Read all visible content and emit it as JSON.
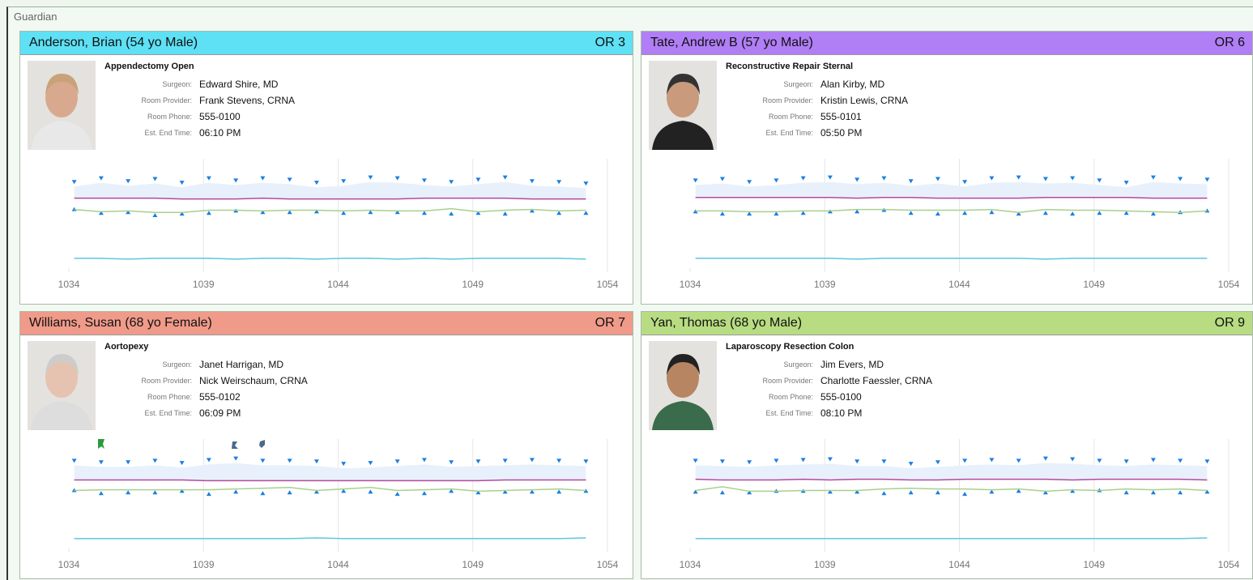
{
  "app_title": "Guardian",
  "patients": [
    {
      "name": "Anderson, Brian (54 yo Male)",
      "room": "OR 3",
      "header_color": "#5ee0f5",
      "procedure": "Appendectomy Open",
      "fields": [
        {
          "label": "Surgeon:",
          "value": "Edward Shire, MD"
        },
        {
          "label": "Room Provider:",
          "value": "Frank Stevens, CRNA"
        },
        {
          "label": "Room Phone:",
          "value": "555-0100"
        },
        {
          "label": "Est. End Time:",
          "value": "06:10 PM"
        }
      ]
    },
    {
      "name": "Tate, Andrew B (57 yo Male)",
      "room": "OR 6",
      "header_color": "#b07ef5",
      "procedure": "Reconstructive Repair Sternal",
      "fields": [
        {
          "label": "Surgeon:",
          "value": "Alan Kirby, MD"
        },
        {
          "label": "Room Provider:",
          "value": "Kristin Lewis, CRNA"
        },
        {
          "label": "Room Phone:",
          "value": "555-0101"
        },
        {
          "label": "Est. End Time:",
          "value": "05:50 PM"
        }
      ]
    },
    {
      "name": "Williams, Susan (68 yo Female)",
      "room": "OR 7",
      "header_color": "#f09a8a",
      "procedure": "Aortopexy",
      "fields": [
        {
          "label": "Surgeon:",
          "value": "Janet Harrigan, MD"
        },
        {
          "label": "Room Provider:",
          "value": "Nick Weirschaum, CRNA"
        },
        {
          "label": "Room Phone:",
          "value": "555-0102"
        },
        {
          "label": "Est. End Time:",
          "value": "06:09 PM"
        }
      ]
    },
    {
      "name": "Yan, Thomas (68 yo Male)",
      "room": "OR 9",
      "header_color": "#b7dc82",
      "procedure": "Laparoscopy Resection Colon",
      "fields": [
        {
          "label": "Surgeon:",
          "value": "Jim Evers, MD"
        },
        {
          "label": "Room Provider:",
          "value": "Charlotte Faessler, CRNA"
        },
        {
          "label": "Room Phone:",
          "value": "555-0100"
        },
        {
          "label": "Est. End Time:",
          "value": "08:10 PM"
        }
      ]
    }
  ],
  "chart_data": [
    {
      "type": "line",
      "x": [
        1034.2,
        1035.2,
        1036.2,
        1037.2,
        1038.2,
        1039.2,
        1040.2,
        1041.2,
        1042.2,
        1043.2,
        1044.2,
        1045.2,
        1046.2,
        1047.2,
        1048.2,
        1049.2,
        1050.2,
        1051.2,
        1052.2,
        1053.2
      ],
      "xlim": [
        1034,
        1054
      ],
      "xticks": [
        1034,
        1039,
        1044,
        1049,
        1054
      ],
      "ylim": [
        20,
        160
      ],
      "grid": true,
      "band_color": "#e8f1fb",
      "series": [
        {
          "color": "#1a7fe0",
          "marker": "triangle-down",
          "values": [
            135,
            140,
            136,
            139,
            134,
            140,
            137,
            140,
            138,
            134,
            136,
            141,
            140,
            137,
            135,
            138,
            141,
            136,
            135,
            133
          ]
        },
        {
          "color": "#1a7fe0",
          "marker": "triangle-up",
          "values": [
            98,
            93,
            94,
            90,
            92,
            93,
            96,
            94,
            94,
            95,
            93,
            94,
            94,
            93,
            92,
            93,
            92,
            96,
            93,
            93
          ]
        },
        {
          "color": "#b5489e",
          "marker": "none",
          "values": [
            113,
            113,
            113,
            113,
            112,
            112,
            112,
            113,
            112,
            112,
            112,
            112,
            112,
            113,
            113,
            113,
            113,
            112,
            112,
            112
          ]
        },
        {
          "color": "#a8d08d",
          "marker": "none",
          "values": [
            98,
            95,
            96,
            94,
            94,
            97,
            97,
            96,
            97,
            97,
            96,
            97,
            96,
            96,
            99,
            95,
            97,
            98,
            96,
            97
          ]
        },
        {
          "color": "#5bc8e0",
          "marker": "none",
          "values": [
            33,
            33,
            32,
            33,
            33,
            33,
            32,
            33,
            33,
            32,
            33,
            33,
            32,
            33,
            32,
            33,
            33,
            33,
            33,
            32
          ]
        }
      ]
    },
    {
      "type": "line",
      "x": [
        1034.2,
        1035.2,
        1036.2,
        1037.2,
        1038.2,
        1039.2,
        1040.2,
        1041.2,
        1042.2,
        1043.2,
        1044.2,
        1045.2,
        1046.2,
        1047.2,
        1048.2,
        1049.2,
        1050.2,
        1051.2,
        1052.2,
        1053.2
      ],
      "xlim": [
        1034,
        1054
      ],
      "xticks": [
        1034,
        1039,
        1044,
        1049,
        1054
      ],
      "ylim": [
        20,
        160
      ],
      "grid": true,
      "band_color": "#e8f1fb",
      "series": [
        {
          "color": "#1a7fe0",
          "marker": "triangle-down",
          "values": [
            137,
            139,
            135,
            137,
            140,
            141,
            138,
            140,
            136,
            139,
            135,
            140,
            141,
            139,
            140,
            137,
            134,
            141,
            139,
            138
          ]
        },
        {
          "color": "#1a7fe0",
          "marker": "triangle-up",
          "values": [
            95,
            92,
            92,
            92,
            93,
            95,
            95,
            97,
            93,
            92,
            93,
            94,
            92,
            93,
            92,
            93,
            93,
            92,
            94,
            96
          ]
        },
        {
          "color": "#b5489e",
          "marker": "none",
          "values": [
            114,
            114,
            114,
            114,
            114,
            114,
            113,
            114,
            114,
            113,
            113,
            113,
            113,
            114,
            114,
            114,
            114,
            113,
            113,
            113
          ]
        },
        {
          "color": "#a8d08d",
          "marker": "none",
          "values": [
            96,
            96,
            95,
            95,
            96,
            96,
            98,
            98,
            97,
            97,
            97,
            98,
            94,
            98,
            97,
            97,
            96,
            95,
            94,
            96
          ]
        },
        {
          "color": "#5bc8e0",
          "marker": "none",
          "values": [
            33,
            33,
            33,
            33,
            33,
            33,
            32,
            33,
            33,
            33,
            33,
            33,
            33,
            32,
            33,
            33,
            33,
            33,
            33,
            33
          ]
        }
      ]
    },
    {
      "type": "line",
      "x": [
        1034.2,
        1035.2,
        1036.2,
        1037.2,
        1038.2,
        1039.2,
        1040.2,
        1041.2,
        1042.2,
        1043.2,
        1044.2,
        1045.2,
        1046.2,
        1047.2,
        1048.2,
        1049.2,
        1050.2,
        1051.2,
        1052.2,
        1053.2
      ],
      "xlim": [
        1034,
        1054
      ],
      "xticks": [
        1034,
        1039,
        1044,
        1049,
        1054
      ],
      "ylim": [
        20,
        160
      ],
      "grid": true,
      "band_color": "#e8f1fb",
      "series": [
        {
          "color": "#1a7fe0",
          "marker": "triangle-down",
          "values": [
            137,
            135,
            135,
            137,
            134,
            138,
            140,
            137,
            137,
            136,
            133,
            134,
            136,
            138,
            135,
            136,
            137,
            138,
            137,
            136
          ]
        },
        {
          "color": "#1a7fe0",
          "marker": "triangle-up",
          "values": [
            97,
            93,
            94,
            94,
            96,
            92,
            95,
            93,
            94,
            95,
            96,
            95,
            92,
            93,
            96,
            94,
            95,
            95,
            95,
            96
          ]
        },
        {
          "color": "#b5489e",
          "marker": "none",
          "values": [
            111,
            111,
            111,
            111,
            111,
            110,
            110,
            110,
            110,
            110,
            110,
            110,
            110,
            110,
            110,
            110,
            111,
            111,
            111,
            111
          ]
        },
        {
          "color": "#a8d08d",
          "marker": "none",
          "values": [
            97,
            98,
            98,
            98,
            98,
            98,
            99,
            100,
            101,
            97,
            99,
            101,
            97,
            98,
            99,
            96,
            97,
            98,
            99,
            97
          ]
        },
        {
          "color": "#5bc8e0",
          "marker": "none",
          "values": [
            33,
            33,
            33,
            33,
            33,
            33,
            33,
            33,
            33,
            34,
            33,
            33,
            33,
            33,
            33,
            33,
            33,
            33,
            33,
            34
          ]
        }
      ]
    },
    {
      "type": "line",
      "x": [
        1034.2,
        1035.2,
        1036.2,
        1037.2,
        1038.2,
        1039.2,
        1040.2,
        1041.2,
        1042.2,
        1043.2,
        1044.2,
        1045.2,
        1046.2,
        1047.2,
        1048.2,
        1049.2,
        1050.2,
        1051.2,
        1052.2,
        1053.2
      ],
      "xlim": [
        1034,
        1054
      ],
      "xticks": [
        1034,
        1039,
        1044,
        1049,
        1054
      ],
      "ylim": [
        20,
        160
      ],
      "grid": true,
      "band_color": "#e8f1fb",
      "series": [
        {
          "color": "#1a7fe0",
          "marker": "triangle-down",
          "values": [
            137,
            136,
            135,
            137,
            138,
            139,
            136,
            136,
            133,
            135,
            137,
            138,
            137,
            140,
            139,
            137,
            136,
            138,
            137,
            136
          ]
        },
        {
          "color": "#1a7fe0",
          "marker": "triangle-up",
          "values": [
            95,
            94,
            94,
            96,
            96,
            95,
            95,
            93,
            94,
            94,
            92,
            95,
            96,
            94,
            96,
            97,
            94,
            94,
            94,
            95
          ]
        },
        {
          "color": "#b5489e",
          "marker": "none",
          "values": [
            112,
            111,
            111,
            111,
            112,
            111,
            112,
            112,
            111,
            111,
            112,
            112,
            112,
            112,
            111,
            112,
            112,
            112,
            112,
            111
          ]
        },
        {
          "color": "#a8d08d",
          "marker": "none",
          "values": [
            97,
            102,
            96,
            96,
            97,
            97,
            97,
            99,
            100,
            99,
            99,
            98,
            99,
            96,
            98,
            97,
            99,
            98,
            99,
            97
          ]
        },
        {
          "color": "#5bc8e0",
          "marker": "none",
          "values": [
            33,
            33,
            33,
            33,
            33,
            33,
            33,
            33,
            33,
            33,
            33,
            33,
            33,
            33,
            33,
            33,
            33,
            33,
            33,
            34
          ]
        }
      ]
    }
  ]
}
